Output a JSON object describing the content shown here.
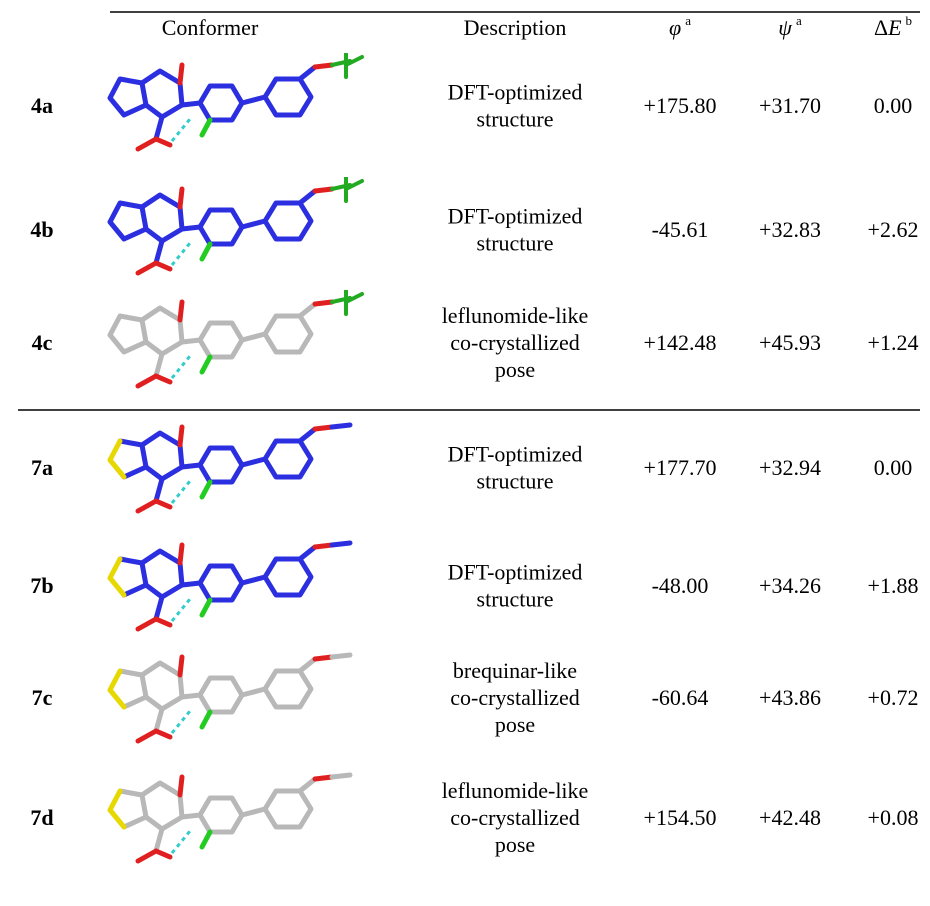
{
  "table": {
    "header": [
      "Conformer",
      "Description",
      {
        "symbol": "φ",
        "note": "a"
      },
      {
        "symbol": "ψ",
        "note": "a"
      },
      {
        "prefix": "Δ",
        "symbol": "E",
        "note": "b"
      }
    ],
    "groups": [
      {
        "rows": [
          {
            "id": "4a",
            "color": "#2b2fe0",
            "description": [
              "DFT-optimized",
              "structure"
            ],
            "phi": "+175.80",
            "psi": "+31.70",
            "dE": "0.00"
          },
          {
            "id": "4b",
            "color": "#2b2fe0",
            "description": [
              "DFT-optimized",
              "structure"
            ],
            "phi": "-45.61",
            "psi": "+32.83",
            "dE": "+2.62"
          },
          {
            "id": "4c",
            "color": "#b8b8b8",
            "description": [
              "leflunomide-like",
              "co-crystallized",
              "pose"
            ],
            "phi": "+142.48",
            "psi": "+45.93",
            "dE": "+1.24"
          }
        ]
      },
      {
        "rows": [
          {
            "id": "7a",
            "color": "#2b2fe0",
            "description": [
              "DFT-optimized",
              "structure"
            ],
            "phi": "+177.70",
            "psi": "+32.94",
            "dE": "0.00"
          },
          {
            "id": "7b",
            "color": "#2b2fe0",
            "description": [
              "DFT-optimized",
              "structure"
            ],
            "phi": "-48.00",
            "psi": "+34.26",
            "dE": "+1.88"
          },
          {
            "id": "7c",
            "color": "#b8b8b8",
            "description": [
              "brequinar-like",
              "co-crystallized",
              "pose"
            ],
            "phi": "-60.64",
            "psi": "+43.86",
            "dE": "+0.72"
          },
          {
            "id": "7d",
            "color": "#b8b8b8",
            "description": [
              "leflunomide-like",
              "co-crystallized",
              "pose"
            ],
            "phi": "+154.50",
            "psi": "+42.48",
            "dE": "+0.08"
          }
        ]
      }
    ]
  }
}
